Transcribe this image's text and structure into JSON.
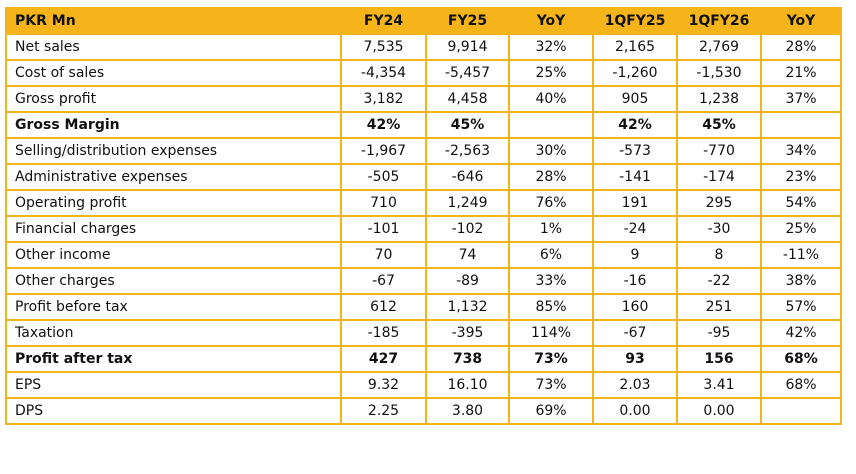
{
  "colors": {
    "accent": "#F5B41A"
  },
  "header": [
    "PKR Mn",
    "FY24",
    "FY25",
    "YoY",
    "1QFY25",
    "1QFY26",
    "YoY"
  ],
  "rows": [
    {
      "label": "Net sales",
      "values": [
        "7,535",
        "9,914",
        "32%",
        "2,165",
        "2,769",
        "28%"
      ],
      "bold": false
    },
    {
      "label": "Cost of sales",
      "values": [
        "-4,354",
        "-5,457",
        "25%",
        "-1,260",
        "-1,530",
        "21%"
      ],
      "bold": false
    },
    {
      "label": "Gross profit",
      "values": [
        "3,182",
        "4,458",
        "40%",
        "905",
        "1,238",
        "37%"
      ],
      "bold": false
    },
    {
      "label": "Gross Margin",
      "values": [
        "42%",
        "45%",
        "",
        "42%",
        "45%",
        ""
      ],
      "bold": true
    },
    {
      "label": "Selling/distribution expenses",
      "values": [
        "-1,967",
        "-2,563",
        "30%",
        "-573",
        "-770",
        "34%"
      ],
      "bold": false
    },
    {
      "label": "Administrative expenses",
      "values": [
        "-505",
        "-646",
        "28%",
        "-141",
        "-174",
        "23%"
      ],
      "bold": false
    },
    {
      "label": "Operating profit",
      "values": [
        "710",
        "1,249",
        "76%",
        "191",
        "295",
        "54%"
      ],
      "bold": false
    },
    {
      "label": "Financial charges",
      "values": [
        "-101",
        "-102",
        "1%",
        "-24",
        "-30",
        "25%"
      ],
      "bold": false
    },
    {
      "label": "Other income",
      "values": [
        "70",
        "74",
        "6%",
        "9",
        "8",
        "-11%"
      ],
      "bold": false
    },
    {
      "label": "Other charges",
      "values": [
        "-67",
        "-89",
        "33%",
        "-16",
        "-22",
        "38%"
      ],
      "bold": false
    },
    {
      "label": "Profit before tax",
      "values": [
        "612",
        "1,132",
        "85%",
        "160",
        "251",
        "57%"
      ],
      "bold": false
    },
    {
      "label": "Taxation",
      "values": [
        "-185",
        "-395",
        "114%",
        "-67",
        "-95",
        "42%"
      ],
      "bold": false
    },
    {
      "label": "Profit after tax",
      "values": [
        "427",
        "738",
        "73%",
        "93",
        "156",
        "68%"
      ],
      "bold": true
    },
    {
      "label": "EPS",
      "values": [
        "9.32",
        "16.10",
        "73%",
        "2.03",
        "3.41",
        "68%"
      ],
      "bold": false
    },
    {
      "label": "DPS",
      "values": [
        "2.25",
        "3.80",
        "69%",
        "0.00",
        "0.00",
        ""
      ],
      "bold": false
    }
  ]
}
